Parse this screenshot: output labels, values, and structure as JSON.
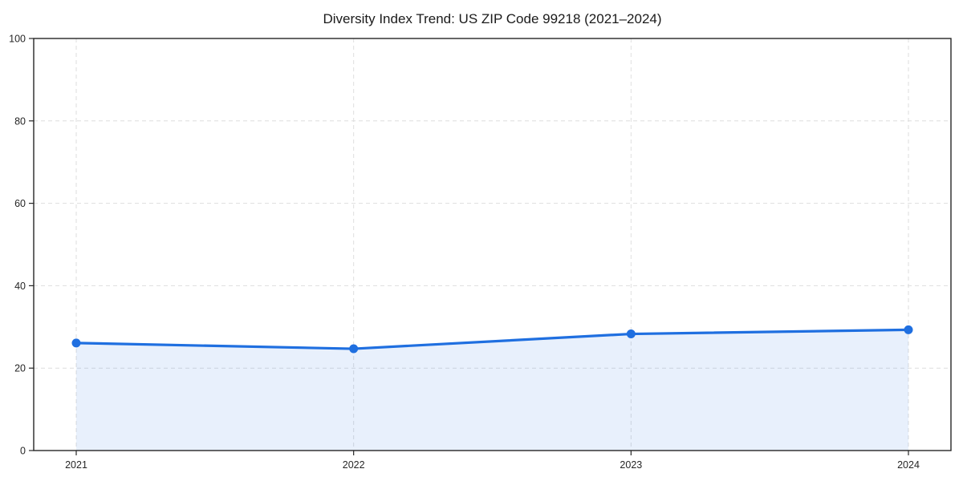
{
  "chart_data": {
    "type": "area",
    "title": "Diversity Index Trend: US ZIP Code 99218 (2021–2024)",
    "x": [
      2021,
      2022,
      2023,
      2024
    ],
    "x_tick_labels": [
      "2021",
      "2022",
      "2023",
      "2024"
    ],
    "series": [
      {
        "name": "Diversity Index",
        "values": [
          26.1,
          24.7,
          28.3,
          29.3
        ]
      }
    ],
    "xlabel": "",
    "ylabel": "",
    "ylim": [
      0,
      100
    ],
    "yticks": [
      0,
      20,
      40,
      60,
      80,
      100
    ],
    "grid": "dashed",
    "legend": "none",
    "colors": {
      "line": "#1f6fe0",
      "marker": "#1f6fe0",
      "fill": "#1f6fe0",
      "fill_opacity": 0.1,
      "grid": "#dedede",
      "frame": "#262626",
      "text": "#262626",
      "background": "#ffffff"
    }
  }
}
